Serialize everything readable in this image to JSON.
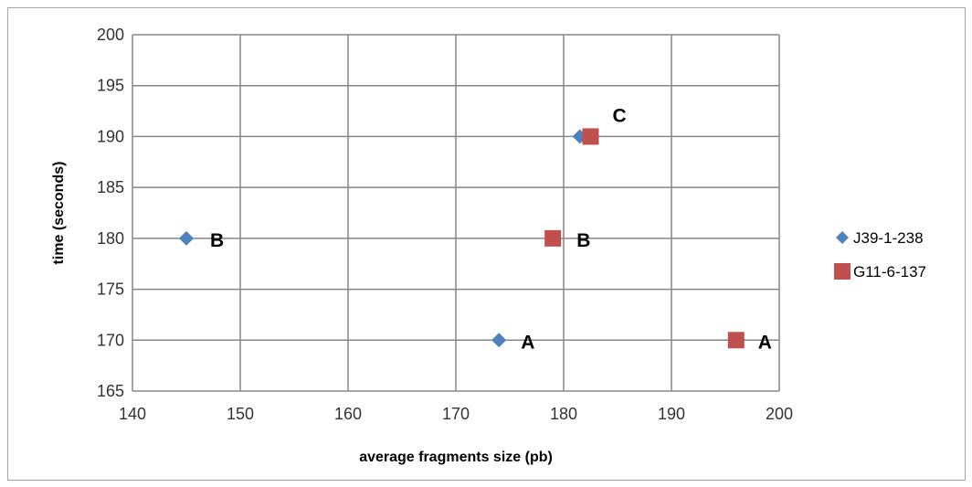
{
  "chart_data": {
    "type": "scatter",
    "title": "",
    "xlabel": "average fragments size (pb)",
    "ylabel": "time (seconds)",
    "xlim": [
      140,
      200
    ],
    "ylim": [
      165,
      200
    ],
    "xticks": [
      140,
      150,
      160,
      170,
      180,
      190,
      200
    ],
    "yticks": [
      165,
      170,
      175,
      180,
      185,
      190,
      195,
      200
    ],
    "grid": true,
    "legend_position": "right",
    "series": [
      {
        "name": "J39-1-238",
        "marker": "diamond",
        "color": "#4f81bd",
        "points": [
          {
            "x": 174,
            "y": 170,
            "label": "A"
          },
          {
            "x": 145,
            "y": 180,
            "label": "B"
          },
          {
            "x": 181.5,
            "y": 190,
            "label": ""
          }
        ]
      },
      {
        "name": "G11-6-137",
        "marker": "square",
        "color": "#c0504d",
        "points": [
          {
            "x": 196,
            "y": 170,
            "label": "A"
          },
          {
            "x": 179,
            "y": 180,
            "label": "B"
          },
          {
            "x": 182.5,
            "y": 190,
            "label": "C"
          }
        ]
      }
    ]
  }
}
